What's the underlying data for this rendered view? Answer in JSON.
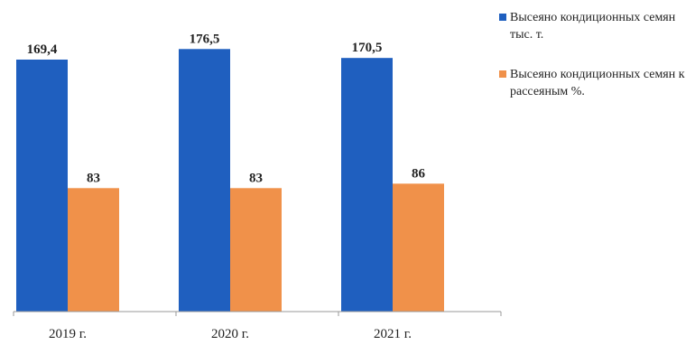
{
  "chart_data": {
    "type": "bar",
    "categories": [
      "2019 г.",
      "2020 г.",
      "2021 г."
    ],
    "series": [
      {
        "name": "Высеяно кондиционных семян тыс. т.",
        "values": [
          169.4,
          176.5,
          170.5
        ],
        "labels": [
          "169,4",
          "176,5",
          "170,5"
        ],
        "color": "#1f5fbf"
      },
      {
        "name": "Высеяно кондиционных семян к рассеяным %.",
        "values": [
          83,
          83,
          86
        ],
        "labels": [
          "83",
          "83",
          "86"
        ],
        "color": "#f0914a"
      }
    ],
    "ylim": [
      0,
      190
    ],
    "grid": false,
    "legend_position": "top-right"
  }
}
